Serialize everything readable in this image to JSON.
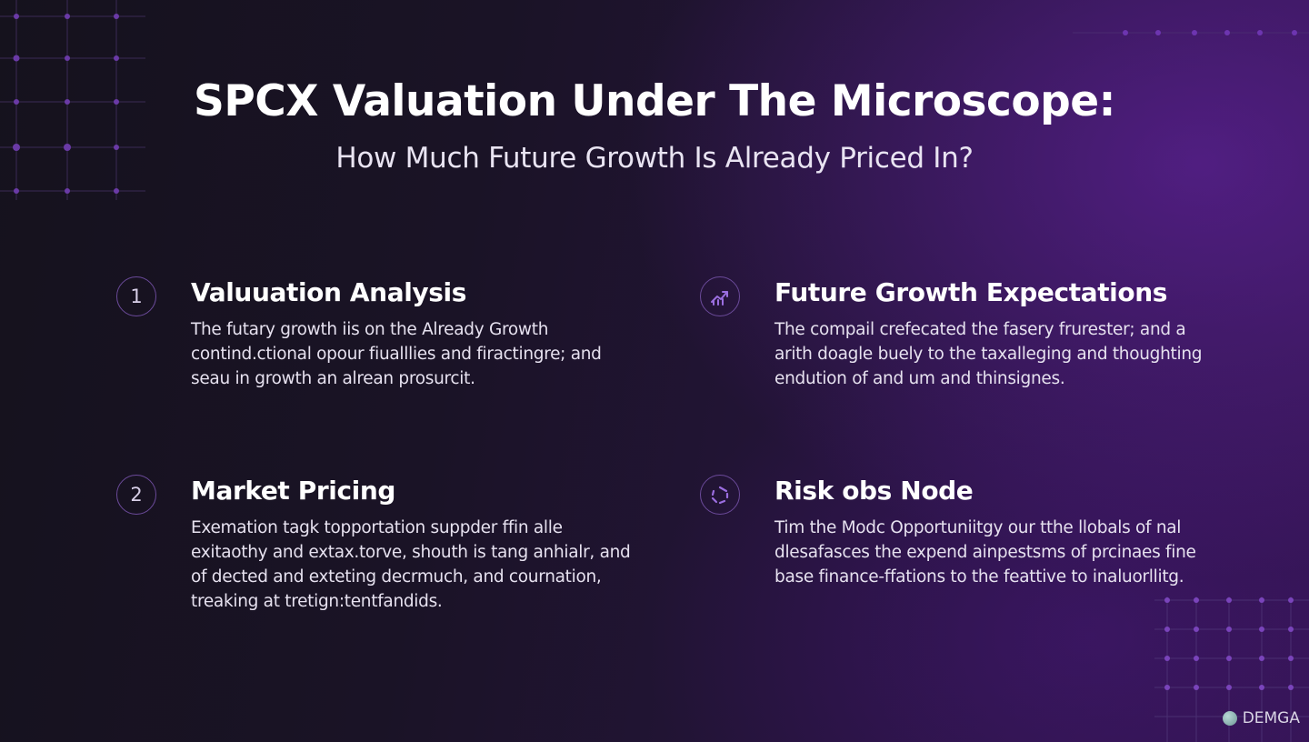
{
  "title": "SPCX Valuation Under The Microscope:",
  "subtitle": "How Much Future Growth Is Already Priced In?",
  "features": [
    {
      "badge": "1",
      "heading": "Valuuation Analysis",
      "body": [
        "The futary growth iis on the Already Growth",
        "contind.ctional opour fiualllies and firactingre; and",
        "seau in growth an alrean prosurcit."
      ]
    },
    {
      "badge_icon": "growth-chart-icon",
      "heading": "Future Growth Expectations",
      "body": [
        "The compail crefecated the fasery frurester; and a",
        "arith doagle buely to the taxalleging and thoughting",
        "endution of and um and thinsignes."
      ]
    },
    {
      "badge": "2",
      "heading": "Market Pricing",
      "body": [
        "Exemation tagk topportation suppder ffin alle",
        "exitaothy and extax.torve, shouth is tang anhialr, and",
        "of dected and exteting decrmuch, and cournation,",
        "treaking at tretign:tentfandids."
      ]
    },
    {
      "badge_icon": "risk-node-icon",
      "heading": "Risk obs Node",
      "body": [
        "Tim the Modc Opportuniitgy our tthe llobals of nal",
        "dlesafasces the expend ainpestsms of prcinaes fine",
        "base finance-ffations to the feattive to inaluorllitg."
      ]
    }
  ],
  "brand": {
    "name": "DEMGA",
    "logo_icon": "brand-logo-icon"
  },
  "colors": {
    "accent": "#8a4fd6",
    "badge_border": "#6b4a9a"
  }
}
